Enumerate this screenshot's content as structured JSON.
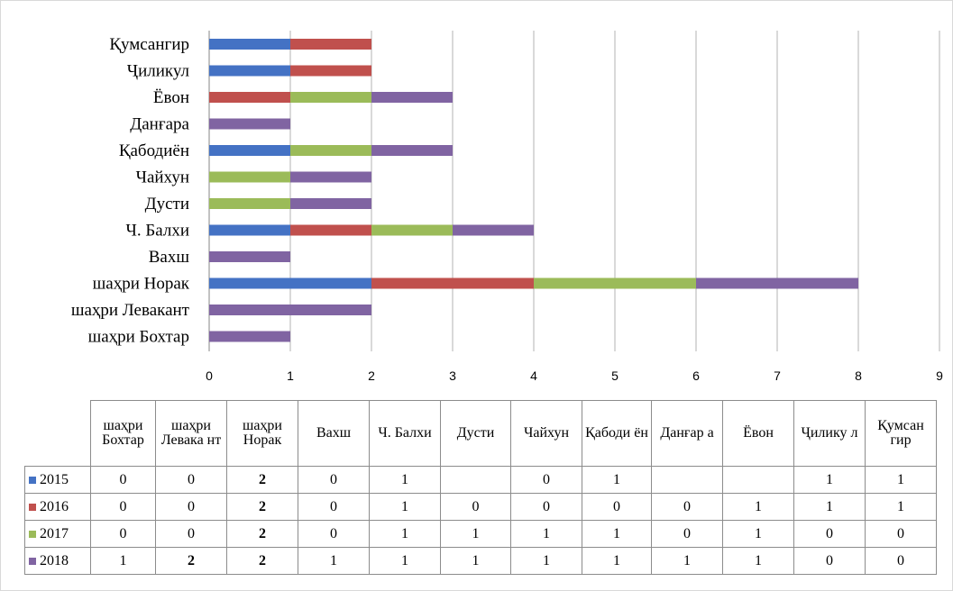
{
  "chart_data": {
    "type": "bar",
    "orientation": "horizontal",
    "stacked": true,
    "categories": [
      "шаҳри Бохтар",
      "шаҳри Левакант",
      "шаҳри Норак",
      "Вахш",
      "Ч. Балхи",
      "Дусти",
      "Чайхун",
      "Қабодиён",
      "Данғара",
      "Ёвон",
      "Ҷиликул",
      "Қумсангир"
    ],
    "series": [
      {
        "name": "2015",
        "color": "#4472c4",
        "values": [
          0,
          0,
          2,
          0,
          1,
          null,
          0,
          1,
          null,
          null,
          1,
          1
        ]
      },
      {
        "name": "2016",
        "color": "#c0504d",
        "values": [
          0,
          0,
          2,
          0,
          1,
          0,
          0,
          0,
          0,
          1,
          1,
          1
        ]
      },
      {
        "name": "2017",
        "color": "#9bbb59",
        "values": [
          0,
          0,
          2,
          0,
          1,
          1,
          1,
          1,
          0,
          1,
          0,
          0
        ]
      },
      {
        "name": "2018",
        "color": "#8064a2",
        "values": [
          1,
          2,
          2,
          1,
          1,
          1,
          1,
          1,
          1,
          1,
          0,
          0
        ]
      }
    ],
    "x_ticks": [
      "0",
      "1",
      "2",
      "3",
      "4",
      "5",
      "6",
      "7",
      "8",
      "9"
    ],
    "xlim": [
      0,
      9
    ],
    "grid": true,
    "legend": "data-table"
  },
  "table": {
    "headers": [
      "шаҳри Бохтар",
      "шаҳри Левака нт",
      "шаҳри Норак",
      "Вахш",
      "Ч. Балхи",
      "Дусти",
      "Чайхун",
      "Қабоди ён",
      "Данғар а",
      "Ёвон",
      "Ҷилику л",
      "Қумсан гир"
    ],
    "rows": [
      {
        "series": "2015",
        "cells": [
          "0",
          "0",
          "2",
          "0",
          "1",
          "",
          "0",
          "1",
          "",
          "",
          "1",
          "1"
        ]
      },
      {
        "series": "2016",
        "cells": [
          "0",
          "0",
          "2",
          "0",
          "1",
          "0",
          "0",
          "0",
          "0",
          "1",
          "1",
          "1"
        ]
      },
      {
        "series": "2017",
        "cells": [
          "0",
          "0",
          "2",
          "0",
          "1",
          "1",
          "1",
          "1",
          "0",
          "1",
          "0",
          "0"
        ]
      },
      {
        "series": "2018",
        "cells": [
          "1",
          "2",
          "2",
          "1",
          "1",
          "1",
          "1",
          "1",
          "1",
          "1",
          "0",
          "0"
        ]
      }
    ]
  }
}
